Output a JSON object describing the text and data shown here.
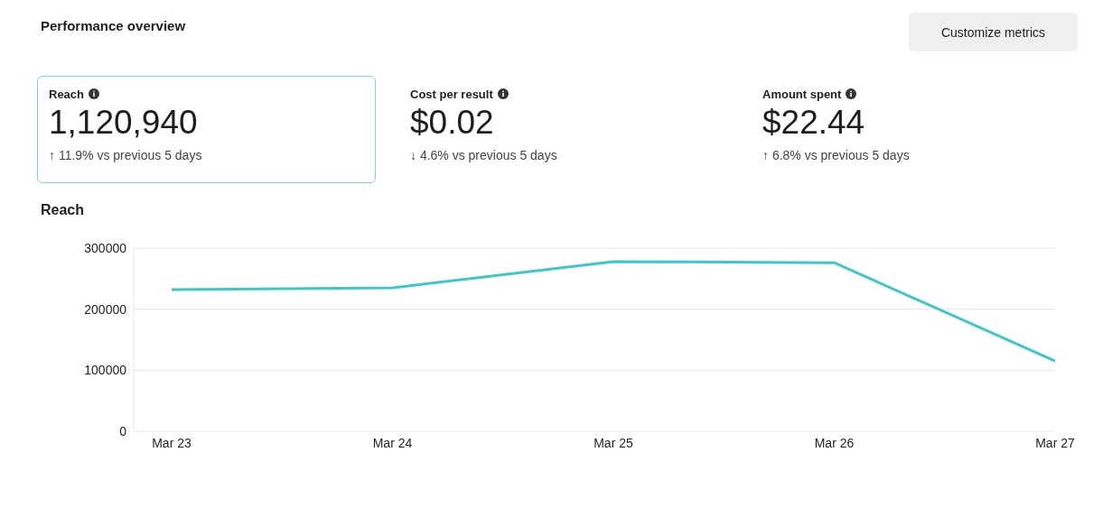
{
  "chart_data": [
    {
      "type": "other",
      "title": "Performance overview",
      "annotations": [
        "Customize metrics",
        "Reach",
        "1,120,940",
        "↑ 11.9% vs previous 5 days",
        "Cost per result",
        "$0.02",
        "↓ 4.6% vs previous 5 days",
        "Amount spent",
        "$22.44",
        "↑ 6.8% vs previous 5 days"
      ]
    },
    {
      "type": "line",
      "title": "Reach",
      "categories": [
        "Mar 23",
        "Mar 24",
        "Mar 25",
        "Mar 26",
        "Mar 27"
      ],
      "series": [
        {
          "color": "#3cc8c6",
          "values": [
            232000,
            235000,
            278000,
            276000,
            115000
          ]
        }
      ],
      "ylim": [
        0,
        300000
      ],
      "yticks": [
        0,
        100000,
        200000,
        300000
      ],
      "grid": "y",
      "marker": "none",
      "line_style": "solid"
    }
  ]
}
